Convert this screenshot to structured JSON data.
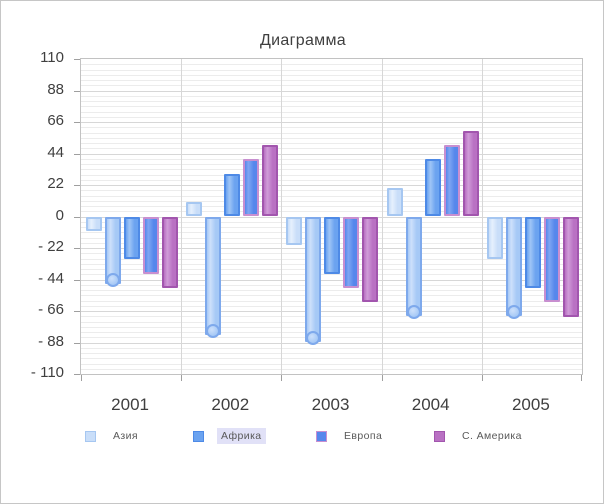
{
  "window": {
    "background": "#ffffff",
    "border_color": "#c6c6c6"
  },
  "chart_data": {
    "type": "bar",
    "title": "Диаграмма",
    "categories": [
      "2001",
      "2002",
      "2003",
      "2004",
      "2005"
    ],
    "series": [
      {
        "name": "Азия",
        "style": "asia",
        "in_legend": true,
        "values": [
          -10,
          10,
          -20,
          20,
          -30
        ]
      },
      {
        "name": "",
        "style": "extra",
        "in_legend": false,
        "marker": "circle-end",
        "values": [
          -44,
          -80,
          -85,
          -67,
          -67
        ]
      },
      {
        "name": "Африка",
        "style": "africa",
        "in_legend": true,
        "values": [
          -30,
          30,
          -40,
          40,
          -50
        ]
      },
      {
        "name": "Европа",
        "style": "europe",
        "in_legend": true,
        "values": [
          -40,
          40,
          -50,
          50,
          -60
        ]
      },
      {
        "name": "С. Америка",
        "style": "america",
        "in_legend": true,
        "values": [
          -50,
          50,
          -60,
          60,
          -70
        ]
      }
    ],
    "ylim": [
      -110,
      110
    ],
    "y_major_step": 22,
    "y_minor_divisions": 6,
    "y_tick_labels": [
      "110",
      "88",
      "66",
      "44",
      "22",
      "0",
      "- 22",
      "- 44",
      "- 66",
      "- 88",
      "- 110"
    ],
    "grid": true,
    "legend_position": "bottom",
    "highlighted_legend_label": "Африка"
  },
  "colors": {
    "asia": {
      "fill": "#c9def9",
      "light": "#e6f0fd",
      "border": "#a6c7f1"
    },
    "extra": {
      "fill": "#a6c9f6",
      "light": "#cde0fb",
      "border": "#7ea9ec"
    },
    "africa": {
      "fill": "#6ba3f0",
      "light": "#9fc5f6",
      "border": "#4e8ae6"
    },
    "europe": {
      "fill": "#5687ec",
      "light": "#7fa6f2",
      "border": "#c88fd0"
    },
    "america": {
      "fill": "#b971c3",
      "light": "#d09cd8",
      "border": "#a256ae"
    },
    "gridline_minor": "#ececec",
    "gridline_major": "#d7d7d7",
    "axis_text": "#3f3f3f",
    "legend_text": "#595959",
    "legend_highlight": "#e1e1f7"
  }
}
